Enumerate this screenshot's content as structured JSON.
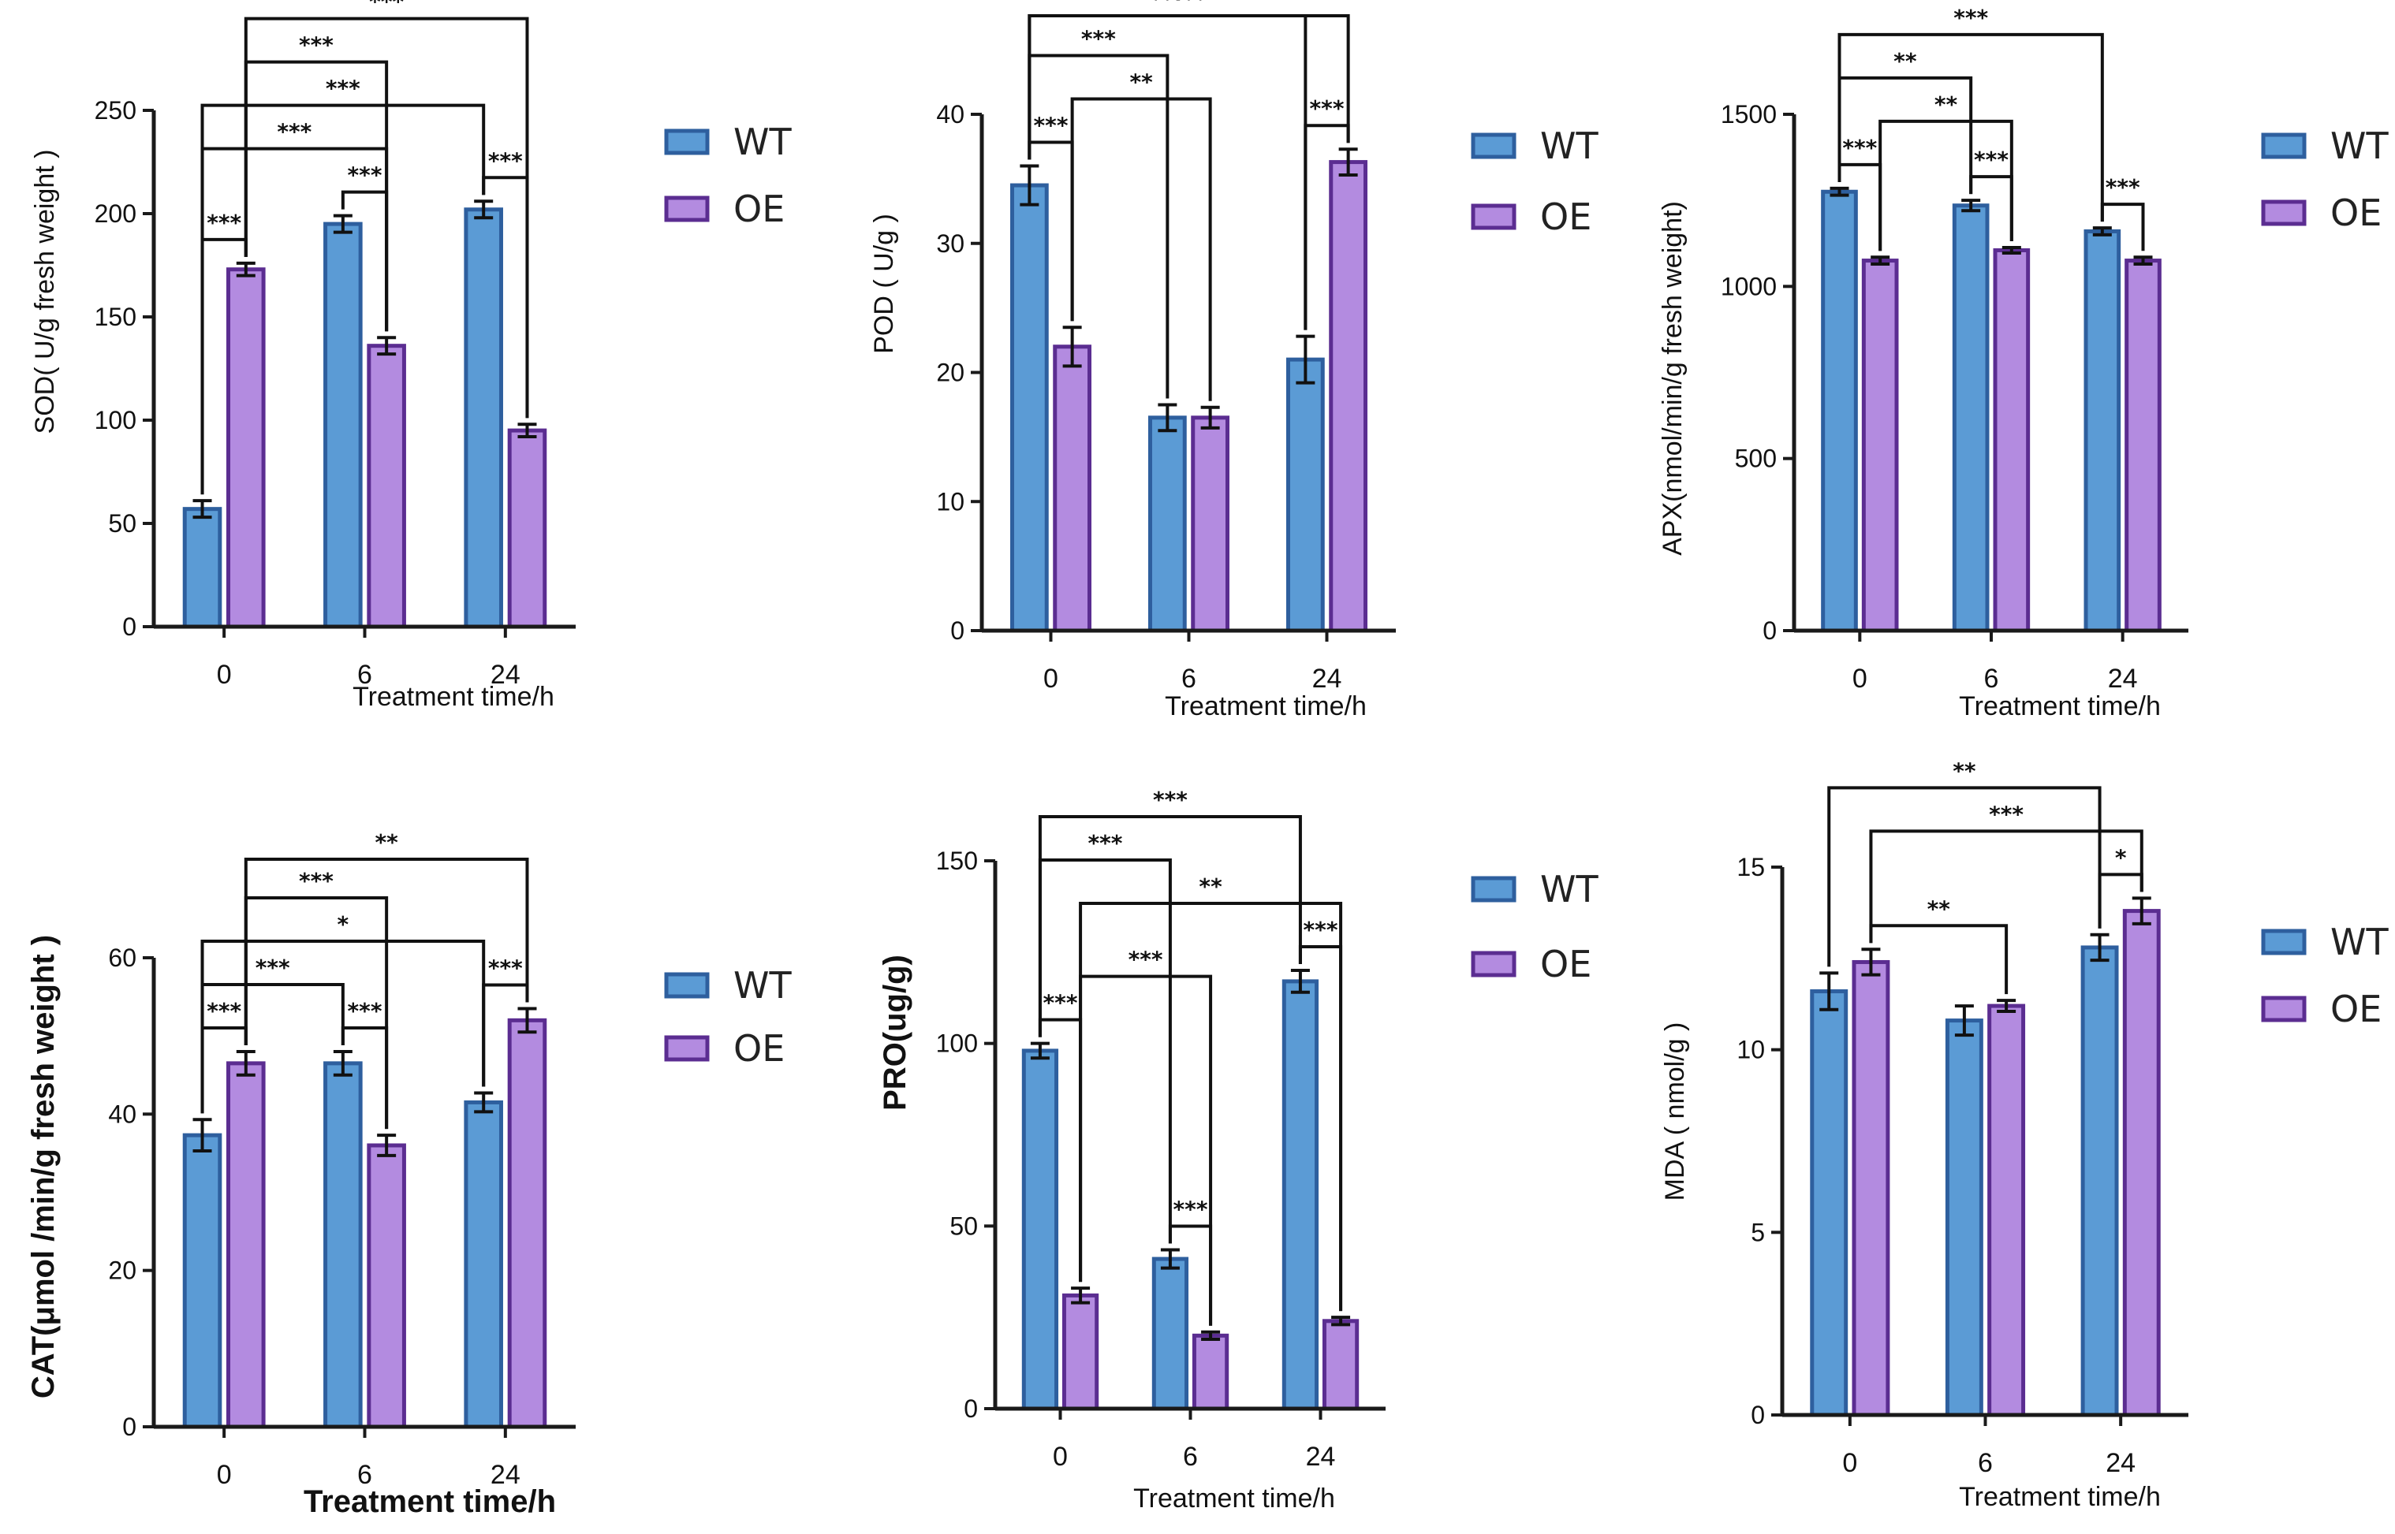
{
  "colors": {
    "wt_fill": "#5b9bd5",
    "wt_stroke": "#2e5f9e",
    "oe_fill": "#b38be0",
    "oe_stroke": "#5b2d91"
  },
  "legend": {
    "wt": "WT",
    "oe": "OE"
  },
  "chart_data": [
    {
      "id": "sod",
      "type": "bar",
      "ylabel": "SOD( U/g fresh weight )",
      "xlabel": "Treatment time/h",
      "categories": [
        "0",
        "6",
        "24"
      ],
      "ylim": [
        0,
        250
      ],
      "yticks": [
        0,
        50,
        100,
        150,
        200,
        250
      ],
      "series": [
        {
          "name": "WT",
          "values": [
            57,
            195,
            202
          ],
          "errors": [
            4,
            4,
            4
          ]
        },
        {
          "name": "OE",
          "values": [
            173,
            136,
            95
          ],
          "errors": [
            3,
            4,
            3
          ]
        }
      ],
      "significance": [
        {
          "from": [
            0,
            0
          ],
          "to": [
            0,
            1
          ],
          "label": "***"
        },
        {
          "from": [
            1,
            0
          ],
          "to": [
            1,
            1
          ],
          "label": "***"
        },
        {
          "from": [
            2,
            0
          ],
          "to": [
            2,
            1
          ],
          "label": "***"
        },
        {
          "from": [
            0,
            0
          ],
          "to": [
            1,
            1
          ],
          "label": "***"
        },
        {
          "from": [
            0,
            0
          ],
          "to": [
            2,
            0
          ],
          "label": "***"
        },
        {
          "from": [
            0,
            1
          ],
          "to": [
            1,
            1
          ],
          "label": "***"
        },
        {
          "from": [
            0,
            1
          ],
          "to": [
            2,
            1
          ],
          "label": "***"
        }
      ]
    },
    {
      "id": "pod",
      "type": "bar",
      "ylabel": "POD ( U/g )",
      "xlabel": "Treatment time/h",
      "categories": [
        "0",
        "6",
        "24"
      ],
      "ylim": [
        0,
        40
      ],
      "yticks": [
        0,
        10,
        20,
        30,
        40
      ],
      "series": [
        {
          "name": "WT",
          "values": [
            34.5,
            16.5,
            21
          ],
          "errors": [
            1.5,
            1,
            1.8
          ]
        },
        {
          "name": "OE",
          "values": [
            22,
            16.5,
            36.3
          ],
          "errors": [
            1.5,
            0.8,
            1
          ]
        }
      ],
      "significance": [
        {
          "from": [
            0,
            0
          ],
          "to": [
            0,
            1
          ],
          "label": "***"
        },
        {
          "from": [
            2,
            0
          ],
          "to": [
            2,
            1
          ],
          "label": "***"
        },
        {
          "from": [
            0,
            1
          ],
          "to": [
            1,
            1
          ],
          "label": "**"
        },
        {
          "from": [
            0,
            0
          ],
          "to": [
            1,
            0
          ],
          "label": "***"
        },
        {
          "from": [
            0,
            0
          ],
          "to": [
            2,
            1
          ],
          "label": "***"
        },
        {
          "from": [
            0,
            0
          ],
          "to": [
            2,
            0
          ],
          "label": "***"
        }
      ]
    },
    {
      "id": "apx",
      "type": "bar",
      "ylabel": "APX(nmol/min/g fresh weight)",
      "xlabel": "Treatment time/h",
      "categories": [
        "0",
        "6",
        "24"
      ],
      "ylim": [
        0,
        1500
      ],
      "yticks": [
        0,
        500,
        1000,
        1500
      ],
      "series": [
        {
          "name": "WT",
          "values": [
            1275,
            1235,
            1160
          ],
          "errors": [
            10,
            15,
            10
          ]
        },
        {
          "name": "OE",
          "values": [
            1075,
            1105,
            1075
          ],
          "errors": [
            10,
            8,
            10
          ]
        }
      ],
      "significance": [
        {
          "from": [
            0,
            0
          ],
          "to": [
            0,
            1
          ],
          "label": "***"
        },
        {
          "from": [
            1,
            0
          ],
          "to": [
            1,
            1
          ],
          "label": "***"
        },
        {
          "from": [
            2,
            0
          ],
          "to": [
            2,
            1
          ],
          "label": "***"
        },
        {
          "from": [
            0,
            1
          ],
          "to": [
            1,
            1
          ],
          "label": "**"
        },
        {
          "from": [
            0,
            0
          ],
          "to": [
            1,
            0
          ],
          "label": "**"
        },
        {
          "from": [
            0,
            0
          ],
          "to": [
            2,
            0
          ],
          "label": "***"
        }
      ]
    },
    {
      "id": "cat",
      "type": "bar",
      "ylabel": "CAT(μmol /min/g fresh weight )",
      "xlabel": "Treatment time/h",
      "categories": [
        "0",
        "6",
        "24"
      ],
      "ylim": [
        0,
        60
      ],
      "yticks": [
        0,
        20,
        40,
        60
      ],
      "series": [
        {
          "name": "WT",
          "values": [
            37.3,
            46.5,
            41.5
          ],
          "errors": [
            2,
            1.5,
            1.2
          ]
        },
        {
          "name": "OE",
          "values": [
            46.5,
            36,
            52
          ],
          "errors": [
            1.5,
            1.3,
            1.5
          ]
        }
      ],
      "significance": [
        {
          "from": [
            0,
            0
          ],
          "to": [
            0,
            1
          ],
          "label": "***"
        },
        {
          "from": [
            1,
            0
          ],
          "to": [
            1,
            1
          ],
          "label": "***"
        },
        {
          "from": [
            2,
            0
          ],
          "to": [
            2,
            1
          ],
          "label": "***"
        },
        {
          "from": [
            0,
            0
          ],
          "to": [
            1,
            0
          ],
          "label": "***"
        },
        {
          "from": [
            0,
            0
          ],
          "to": [
            2,
            0
          ],
          "label": "*"
        },
        {
          "from": [
            0,
            1
          ],
          "to": [
            1,
            1
          ],
          "label": "***"
        },
        {
          "from": [
            0,
            1
          ],
          "to": [
            2,
            1
          ],
          "label": "**"
        }
      ]
    },
    {
      "id": "pro",
      "type": "bar",
      "ylabel": "PRO(ug/g)",
      "xlabel": "Treatment time/h",
      "categories": [
        "0",
        "6",
        "24"
      ],
      "ylim": [
        0,
        150
      ],
      "yticks": [
        0,
        50,
        100,
        150
      ],
      "series": [
        {
          "name": "WT",
          "values": [
            98,
            41,
            117
          ],
          "errors": [
            2,
            2.5,
            3
          ]
        },
        {
          "name": "OE",
          "values": [
            31,
            20,
            24
          ],
          "errors": [
            2,
            1,
            1
          ]
        }
      ],
      "significance": [
        {
          "from": [
            0,
            0
          ],
          "to": [
            0,
            1
          ],
          "label": "***"
        },
        {
          "from": [
            1,
            0
          ],
          "to": [
            1,
            1
          ],
          "label": "***"
        },
        {
          "from": [
            2,
            0
          ],
          "to": [
            2,
            1
          ],
          "label": "***"
        },
        {
          "from": [
            0,
            1
          ],
          "to": [
            1,
            1
          ],
          "label": "***"
        },
        {
          "from": [
            0,
            1
          ],
          "to": [
            2,
            1
          ],
          "label": "**"
        },
        {
          "from": [
            0,
            0
          ],
          "to": [
            1,
            0
          ],
          "label": "***"
        },
        {
          "from": [
            0,
            0
          ],
          "to": [
            2,
            0
          ],
          "label": "***"
        }
      ]
    },
    {
      "id": "mda",
      "type": "bar",
      "ylabel": "MDA ( nmol/g )",
      "xlabel": "Treatment time/h",
      "categories": [
        "0",
        "6",
        "24"
      ],
      "ylim": [
        0,
        15
      ],
      "yticks": [
        0,
        5,
        10,
        15
      ],
      "series": [
        {
          "name": "WT",
          "values": [
            11.6,
            10.8,
            12.8
          ],
          "errors": [
            0.5,
            0.4,
            0.35
          ]
        },
        {
          "name": "OE",
          "values": [
            12.4,
            11.2,
            13.8
          ],
          "errors": [
            0.35,
            0.15,
            0.35
          ]
        }
      ],
      "significance": [
        {
          "from": [
            2,
            0
          ],
          "to": [
            2,
            1
          ],
          "label": "*"
        },
        {
          "from": [
            0,
            1
          ],
          "to": [
            1,
            1
          ],
          "label": "**"
        },
        {
          "from": [
            0,
            1
          ],
          "to": [
            2,
            1
          ],
          "label": "***"
        },
        {
          "from": [
            0,
            0
          ],
          "to": [
            2,
            0
          ],
          "label": "**"
        }
      ]
    }
  ]
}
